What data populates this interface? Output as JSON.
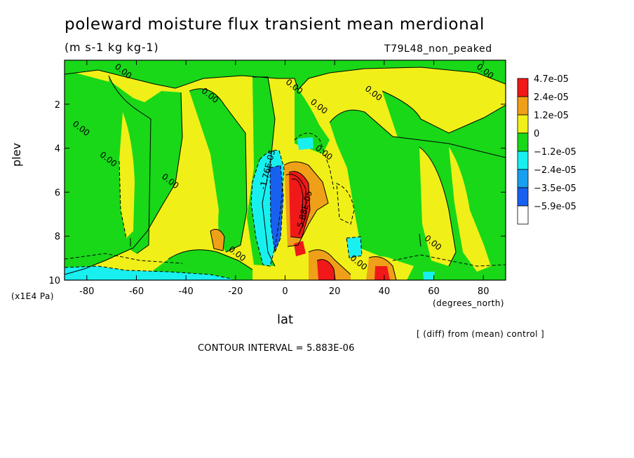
{
  "chart_data": {
    "type": "heatmap",
    "title": "poleward moisture flux transient mean merdional",
    "units": "(m s-1 kg kg-1)",
    "dataset": "T79L48_non_peaked",
    "xlabel": "lat",
    "x_units": "(degrees_north)",
    "ylabel": "plev",
    "y_units": "(x1E4 Pa)",
    "x_ticks": [
      "-80",
      "-60",
      "-40",
      "-20",
      "0",
      "20",
      "40",
      "60",
      "80"
    ],
    "y_ticks": [
      "2",
      "4",
      "6",
      "8",
      "10"
    ],
    "xlim": [
      -89,
      89
    ],
    "ylim": [
      0,
      10
    ],
    "y_inverted": true,
    "note": "[ (diff) from (mean) control ]",
    "contour_interval": "CONTOUR INTERVAL = 5.883E-06",
    "colorbar": {
      "labels": [
        "4.7e-05",
        "2.4e-05",
        "1.2e-05",
        "0",
        "−1.2e-05",
        "−2.4e-05",
        "−3.5e-05",
        "−5.9e-05"
      ],
      "colors": [
        "#f01818",
        "#f0a018",
        "#f0f018",
        "#18d818",
        "#18f0f0",
        "#18a0f0",
        "#1860f0",
        "#ffffff"
      ]
    },
    "contour_labels": [
      {
        "text": "0.00",
        "lat": -66,
        "plev": 0.6
      },
      {
        "text": "0.00",
        "lat": -31,
        "plev": 1.7
      },
      {
        "text": "0.00",
        "lat": -83,
        "plev": 3.2
      },
      {
        "text": "0.00",
        "lat": -72,
        "plev": 4.6
      },
      {
        "text": "0.00",
        "lat": -47,
        "plev": 5.6
      },
      {
        "text": "0.00",
        "lat": 3,
        "plev": 1.3
      },
      {
        "text": "0.00",
        "lat": 13,
        "plev": 2.2
      },
      {
        "text": "0.00",
        "lat": 35,
        "plev": 1.6
      },
      {
        "text": "0.00",
        "lat": 15,
        "plev": 4.3
      },
      {
        "text": "0.00",
        "lat": -20,
        "plev": 8.9
      },
      {
        "text": "0.00",
        "lat": 29,
        "plev": 9.3
      },
      {
        "text": "0.00",
        "lat": 59,
        "plev": 8.4
      },
      {
        "text": "0.00",
        "lat": 80,
        "plev": 0.6
      },
      {
        "text": "-1.76E-05",
        "lat": -6,
        "plev": 5.0
      },
      {
        "text": "5.88E-05",
        "lat": 9,
        "plev": 6.8
      }
    ]
  }
}
